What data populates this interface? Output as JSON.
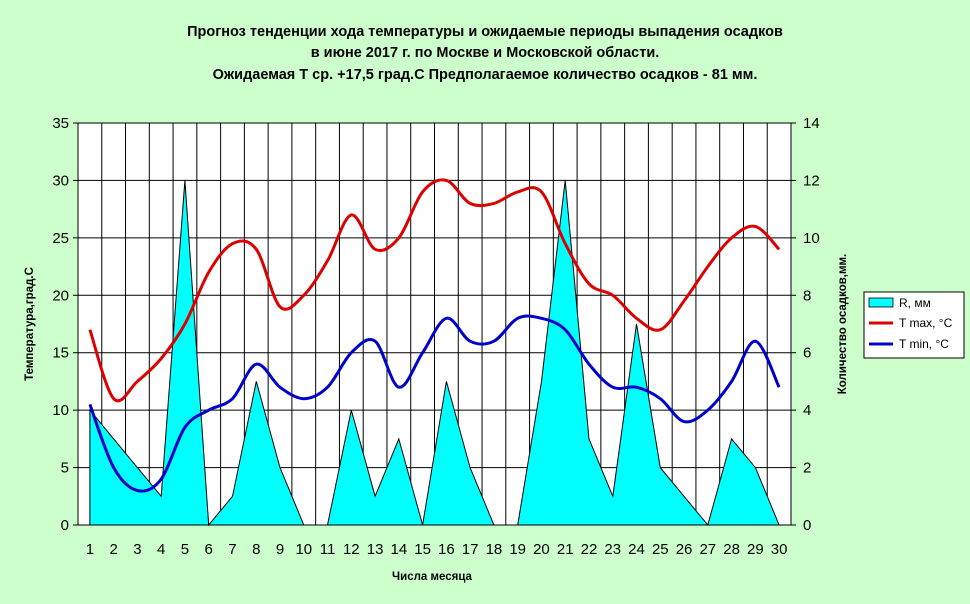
{
  "chart_data": {
    "type": "line",
    "title_lines": [
      "Прогноз тенденции хода температуры и ожидаемые периоды выпадения осадков",
      "в июне 2017 г. по Москве и Московской области.",
      "Ожидаемая Т ср. +17,5 град.С Предполагаемое количество осадков - 81 мм."
    ],
    "xlabel": "Числа месяца",
    "ylabel_left": "Температура,град.С",
    "ylabel_right": "Количество осадков,мм.",
    "x": [
      1,
      2,
      3,
      4,
      5,
      6,
      7,
      8,
      9,
      10,
      11,
      12,
      13,
      14,
      15,
      16,
      17,
      18,
      19,
      20,
      21,
      22,
      23,
      24,
      25,
      26,
      27,
      28,
      29,
      30
    ],
    "ylim_left": [
      0,
      35
    ],
    "yticks_left": [
      0,
      5,
      10,
      15,
      20,
      25,
      30,
      35
    ],
    "ylim_right": [
      0,
      14
    ],
    "yticks_right": [
      0,
      2,
      4,
      6,
      8,
      10,
      12,
      14
    ],
    "grid": "vertical",
    "legend_position": "right",
    "colors": {
      "background": "#ccffcc",
      "plot_background": "#ffffff",
      "area": "#00ffff",
      "tmax": "#dd0000",
      "tmin": "#0000cc"
    },
    "series": [
      {
        "name": "R, мм",
        "type": "area",
        "axis": "right",
        "values": [
          4,
          3,
          2,
          1,
          12,
          0,
          1,
          5,
          2,
          0,
          0,
          4,
          1,
          3,
          0,
          5,
          2,
          0,
          0,
          5,
          12,
          3,
          1,
          7,
          2,
          1,
          0,
          3,
          2,
          0
        ]
      },
      {
        "name": "T max, °C",
        "type": "line",
        "axis": "left",
        "values": [
          17,
          11,
          12.5,
          14.5,
          17.5,
          22,
          24.5,
          24,
          19,
          20,
          23,
          27,
          24,
          25,
          29,
          30,
          28,
          28,
          29,
          29,
          24.5,
          21,
          20,
          18,
          17,
          19.5,
          22.5,
          25,
          26,
          24
        ]
      },
      {
        "name": "T min, °C",
        "type": "line",
        "axis": "left",
        "values": [
          10.5,
          5,
          3,
          4,
          8.5,
          10,
          11,
          14,
          12,
          11,
          12,
          15,
          16,
          12,
          15,
          18,
          16,
          16,
          18,
          18,
          17,
          14,
          12,
          12,
          11,
          9,
          10,
          12.5,
          16,
          12
        ]
      }
    ]
  }
}
